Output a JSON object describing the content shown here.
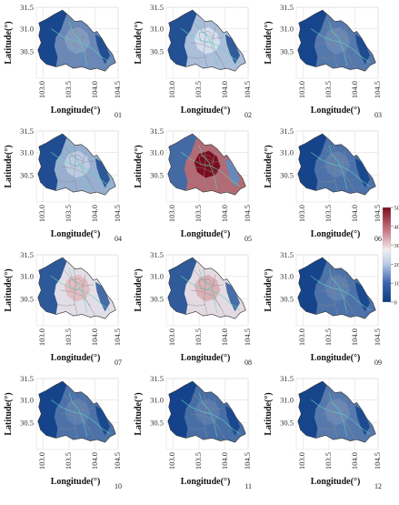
{
  "figure": {
    "ylabel": "Latitude(°)",
    "xlabel": "Longitude(°)",
    "x_ticks": [
      "103.0",
      "103.5",
      "104.0",
      "104.5"
    ],
    "y_ticks": [
      "31.5",
      "31.0",
      "30.5"
    ],
    "panels": [
      {
        "label": "01",
        "level": 0.2
      },
      {
        "label": "02",
        "level": 0.34
      },
      {
        "label": "03",
        "level": 0.16
      },
      {
        "label": "04",
        "level": 0.3
      },
      {
        "label": "05",
        "level": 0.8
      },
      {
        "label": "06",
        "level": 0.14
      },
      {
        "label": "07",
        "level": 0.5
      },
      {
        "label": "08",
        "level": 0.52
      },
      {
        "label": "09",
        "level": 0.14
      },
      {
        "label": "10",
        "level": 0.14
      },
      {
        "label": "11",
        "level": 0.13
      },
      {
        "label": "12",
        "level": 0.16
      }
    ]
  },
  "colorbar": {
    "ticks": [
      "50",
      "40",
      "30",
      "20",
      "10",
      "0"
    ],
    "range": [
      0,
      50
    ],
    "colors": {
      "low": "#0b3c86",
      "mid": "#dfe8f5",
      "high": "#7a0d1e"
    }
  },
  "colors": {
    "background": "#ffffff",
    "grid": "#d8d8d8",
    "region_border": "#8a8a8a",
    "river": "#5fd5bb",
    "dark_zone": "#0b3c86"
  }
}
